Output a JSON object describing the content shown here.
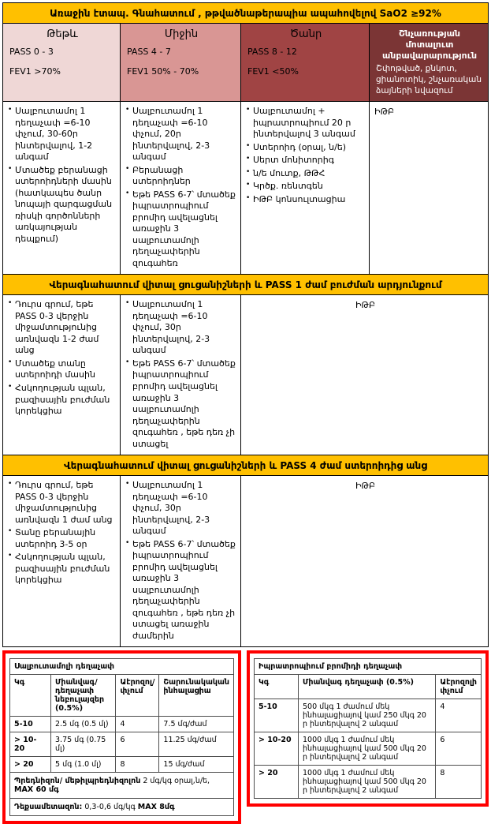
{
  "colors": {
    "banner_gold": "#FFC000",
    "mild_bg": "#EFD7D6",
    "moderate_bg": "#D99694",
    "severe_bg": "#A04444",
    "imminent_bg": "#7B3535",
    "dose_table_border": "#FF0000"
  },
  "banner_stage1": "Առաջին էտապ. Գնահատում , թթվածնաթերապիա ապահովելով SaO2 ≥92%",
  "severity": {
    "mild": {
      "title": "Թեթև",
      "pass": "PASS 0 - 3",
      "fev": "FEV1 >70%"
    },
    "moderate": {
      "title": "Միջին",
      "pass": "PASS 4 - 7",
      "fev": "FEV1 50% - 70%"
    },
    "severe": {
      "title": "Ծանր",
      "pass": "PASS 8 - 12",
      "fev": "FEV1 <50%"
    },
    "imminent": {
      "title": "Շնչառության մոտալուտ անբավարարություն",
      "subtitle": "Շփոթված, քնկոտ, ցիանոտիկ, շնչառական ձայների նվազում"
    }
  },
  "section1": {
    "col1": [
      "Սալբուտամոլ 1 դեղաչափ =6-10 փչում,  30-60ր ինտերվալով, 1-2 անգամ",
      "Մտածեք բերանացի ստերոիդների մասին (հատկապես ծանր նոպայի զարգացման ռիսկի գործոնների առկայության դեպքում)"
    ],
    "col2": [
      "Սալբուտամոլ 1 դեղաչափ =6-10 փչում,  20ր ինտերվալով, 2-3 անգամ",
      "Բերանացի  ստերոիդներ",
      "Եթե PASS 6-7՝ մտածեք իպրատրոպիում բրոմիդ ավելացնել  առաջին 3 սալբուտամոլի դեղաչափերին զուգահեռ"
    ],
    "col3": [
      "Սալբուտամոլ + իպրատրոպիում 20 ր ինտերվալով  3 անգամ",
      "Ստերոիդ (օրալ, ն/ե)",
      "Սերտ մոնիտորիգ",
      "ն/ե մուտք, ԹԹՀ",
      "Կրծք. ռենտգեն",
      "ԻԹԲ կոնսուլտացիա"
    ],
    "col4_text": "ԻԹԲ"
  },
  "banner_reassess1": "Վերագնահատում  վիտալ ցուցանիշների և  PASS 1 ժամ բուժման արդյունքում",
  "section2": {
    "col1": [
      "Դուրս գրում, եթե PASS 0-3 վերջին միջամտությունից առնվազն 1-2 ժամ  անց",
      "Մտածեք տանը ստերոիդի մասին",
      "Հսկողության պլան, բազիսային բուժման կորեկցիա"
    ],
    "col2": [
      "Սալբուտամոլ 1 դեղաչափ =6-10 փչում,  30ր ինտերվալով, 2-3 անգամ",
      "Եթե PASS 6-7՝ մտածեք իպրատրոպիում բրոմիդ ավելացնել  առաջին 3 սալբուտամոլի դեղաչափերին զուգահեռ , եթե դեռ չի ստացել"
    ],
    "merged_text": "ԻԹԲ"
  },
  "banner_reassess2": "Վերագնահատում  վիտալ ցուցանիշների և  PASS  4 ժամ ստերոիդից  անց",
  "section3": {
    "col1": [
      "Դուրս գրում, եթե PASS 0-3 վերջին միջամտությունից առնվազն 1 ժամ  անց",
      "Տանը  բերանային ստերոիդ  3-5 օր",
      "Հսկողության պլան, բազիսային բուժման կորեկցիա"
    ],
    "col2": [
      "Սալբուտամոլ 1 դեղաչափ =6-10 փչում,  30ր ինտերվալով,  2-3 անգամ",
      "Եթե PASS 6-7՝ մտածեք իպրատրոպիում բրոմիդ ավելացնել  առաջին 3 սալբուտամոլի դեղաչափերին զուգահեռ , եթե դեռ չի ստացել առաջին ժամերին"
    ],
    "merged_text": "ԻԹԲ"
  },
  "salbutamol_table": {
    "title": "Սալբուտամոլի դեղաչափ",
    "header_rows": [
      [
        "Կգ",
        "Միանվագ/դեղաչափ նեբուլայզեր (0.5%)",
        "Աէրոզոլ/ փչում",
        "Շարունակական ինհալացիա"
      ]
    ],
    "rows": [
      [
        "5-10",
        "2.5 մգ (0.5 մլ)",
        "4",
        "7.5 մգ/ժամ"
      ],
      [
        "> 10-20",
        "3.75 մգ (0.75 մլ)",
        "6",
        "11.25 մգ/ժամ"
      ],
      [
        "> 20",
        "5 մգ (1.0 մլ)",
        "8",
        "15 մգ/ժամ"
      ]
    ],
    "footers": [
      {
        "lead": "Պրեդնիզոն/ մեթիլպրեդնիզոլոն",
        "mid": " 2 մգ/կգ օրալ,ն/ե, ",
        "max": "MAX 60 մգ"
      },
      {
        "lead": "Դեքսամետազոն:",
        "mid": " 0,3-0,6 մգ/կգ ",
        "max": "MAX 8մգ"
      }
    ]
  },
  "ipratropium_table": {
    "title": "Իպրատրոպիում բրոմիդի դեղաչափ",
    "header_rows": [
      [
        "Կգ",
        "Միանվագ դեղաչափ (0.5%)",
        "Աէրոզոլի փչում"
      ]
    ],
    "rows": [
      [
        "5-10",
        "500 մկգ 1 ժամում մեկ ինհալացիայով կամ 250 մկգ  20 ր ինտերվալով 2 անգամ",
        "4"
      ],
      [
        "> 10-20",
        "1000 մկգ 1 ժամում մեկ ինհալացիայով կամ 500 մկգ  20 ր ինտերվալով 2 անգամ",
        "6"
      ],
      [
        "> 20",
        "1000 մկգ 1 ժամում մեկ ինհալացիայով կամ 500 մկգ  20 ր ինտերվալով 2 անգամ",
        "8"
      ]
    ]
  }
}
